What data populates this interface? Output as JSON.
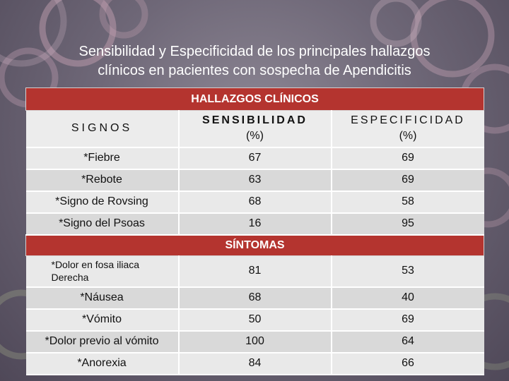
{
  "title": {
    "line1": "Sensibilidad y Especificidad de los principales hallazgos",
    "line2": "clínicos en pacientes con sospecha de Apendicitis"
  },
  "table": {
    "section1_title": "HALLAZGOS CLÍNICOS",
    "headers": {
      "signos": "SIGNOS",
      "sensibilidad": "SENSIBILIDAD",
      "sensibilidad_unit": "(%)",
      "especificidad": "ESPECIFICIDAD",
      "especificidad_unit": "(%)"
    },
    "signos": [
      {
        "name": "*Fiebre",
        "sens": "67",
        "espec": "69"
      },
      {
        "name": "*Rebote",
        "sens": "63",
        "espec": "69"
      },
      {
        "name": "*Signo de Rovsing",
        "sens": "68",
        "espec": "58"
      },
      {
        "name": "*Signo del Psoas",
        "sens": "16",
        "espec": "95"
      }
    ],
    "section2_title": "SÍNTOMAS",
    "sintomas": [
      {
        "name": "*Dolor en fosa iliaca Derecha",
        "sens": "81",
        "espec": "53"
      },
      {
        "name": "*Náusea",
        "sens": "68",
        "espec": "40"
      },
      {
        "name": "*Vómito",
        "sens": "50",
        "espec": "69"
      },
      {
        "name": "*Dolor previo al vómito",
        "sens": "100",
        "espec": "64"
      },
      {
        "name": "*Anorexia",
        "sens": "84",
        "espec": "66"
      }
    ]
  }
}
